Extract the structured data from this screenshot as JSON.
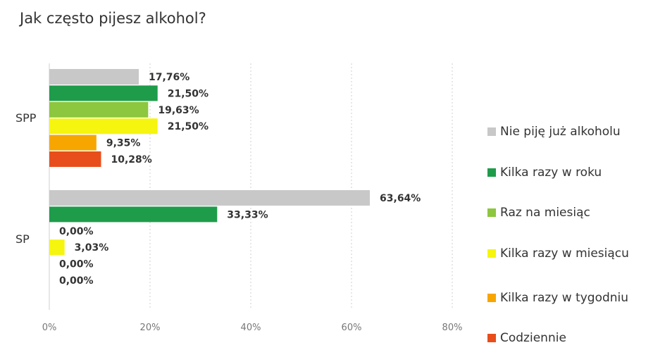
{
  "chart_data": {
    "type": "bar",
    "orientation": "horizontal",
    "title": "Jak często pijesz alkohol?",
    "categories": [
      "SPP",
      "SP"
    ],
    "xlim": [
      0,
      80
    ],
    "x_ticks": [
      "0%",
      "20%",
      "40%",
      "60%",
      "80%"
    ],
    "grid": true,
    "legend_position": "right",
    "series": [
      {
        "name": "Nie piję już alkoholu",
        "color": "#c8c8c8",
        "values": [
          17.76,
          63.64
        ],
        "labels": [
          "17,76%",
          "63,64%"
        ]
      },
      {
        "name": "Kilka razy w roku",
        "color": "#1e9c4a",
        "values": [
          21.5,
          33.33
        ],
        "labels": [
          "21,50%",
          "33,33%"
        ]
      },
      {
        "name": "Raz na miesiąc",
        "color": "#8dc63f",
        "values": [
          19.63,
          0.0
        ],
        "labels": [
          "19,63%",
          "0,00%"
        ]
      },
      {
        "name": "Kilka razy w miesiącu",
        "color": "#f5f50f",
        "values": [
          21.5,
          3.03
        ],
        "labels": [
          "21,50%",
          "3,03%"
        ]
      },
      {
        "name": "Kilka razy w tygodniu",
        "color": "#f7a600",
        "values": [
          9.35,
          0.0
        ],
        "labels": [
          "9,35%",
          "0,00%"
        ]
      },
      {
        "name": "Codziennie",
        "color": "#e84e1b",
        "values": [
          10.28,
          0.0
        ],
        "labels": [
          "10,28%",
          "0,00%"
        ]
      }
    ]
  }
}
